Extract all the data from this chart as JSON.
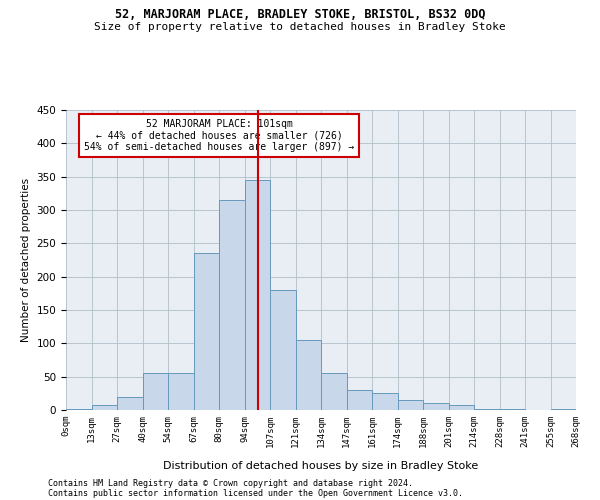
{
  "title": "52, MARJORAM PLACE, BRADLEY STOKE, BRISTOL, BS32 0DQ",
  "subtitle": "Size of property relative to detached houses in Bradley Stoke",
  "xlabel": "Distribution of detached houses by size in Bradley Stoke",
  "ylabel": "Number of detached properties",
  "footer_line1": "Contains HM Land Registry data © Crown copyright and database right 2024.",
  "footer_line2": "Contains public sector information licensed under the Open Government Licence v3.0.",
  "annotation_line1": "52 MARJORAM PLACE: 101sqm",
  "annotation_line2": "← 44% of detached houses are smaller (726)",
  "annotation_line3": "54% of semi-detached houses are larger (897) →",
  "bin_labels": [
    "0sqm",
    "13sqm",
    "27sqm",
    "40sqm",
    "54sqm",
    "67sqm",
    "80sqm",
    "94sqm",
    "107sqm",
    "121sqm",
    "134sqm",
    "147sqm",
    "161sqm",
    "174sqm",
    "188sqm",
    "201sqm",
    "214sqm",
    "228sqm",
    "241sqm",
    "255sqm",
    "268sqm"
  ],
  "bar_values": [
    2,
    8,
    20,
    55,
    55,
    235,
    315,
    345,
    180,
    105,
    55,
    30,
    25,
    15,
    10,
    8,
    2,
    2,
    0,
    2
  ],
  "bar_color": "#c8d8ea",
  "bar_edge_color": "#6699bb",
  "vline_color": "#cc0000",
  "annotation_box_color": "#cc0000",
  "background_color": "#e8eef4",
  "grid_color": "#b0bec8",
  "ylim": [
    0,
    450
  ],
  "yticks": [
    0,
    50,
    100,
    150,
    200,
    250,
    300,
    350,
    400,
    450
  ],
  "vline_position": 7.54
}
